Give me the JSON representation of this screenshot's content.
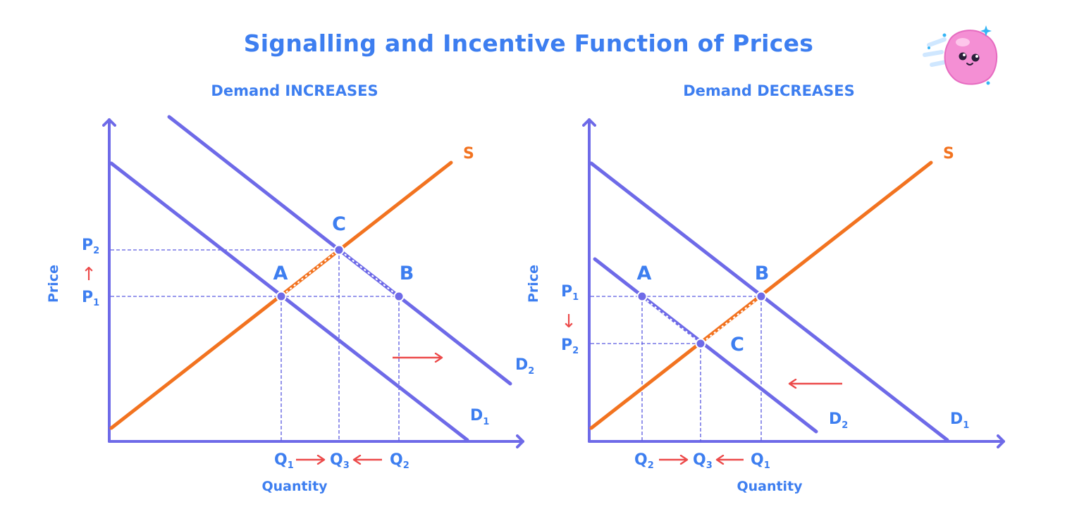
{
  "title": "Signalling and Incentive Function of Prices",
  "colors": {
    "demand": "#6e6ae8",
    "supply": "#f27320",
    "text": "#3d7ef0",
    "arrow": "#ec4a4a",
    "guide": "#5a5ae0"
  },
  "mascot_icon": "pink-blob-mascot-icon",
  "chart_data": [
    {
      "type": "diagram",
      "subtitle": "Demand INCREASES",
      "xlabel": "Quantity",
      "ylabel": "Price",
      "curves": {
        "supply": "S",
        "demand_1": "D",
        "demand_1_sub": "1",
        "demand_2": "D",
        "demand_2_sub": "2"
      },
      "points": {
        "a": "A",
        "b": "B",
        "c": "C"
      },
      "price_labels": [
        {
          "main": "P",
          "sub": "2"
        },
        {
          "main": "P",
          "sub": "1"
        }
      ],
      "price_change_arrow": "↑",
      "quantity_labels": [
        {
          "main": "Q",
          "sub": "1"
        },
        {
          "main": "Q",
          "sub": "3"
        },
        {
          "main": "Q",
          "sub": "2"
        }
      ],
      "shift_direction": "right"
    },
    {
      "type": "diagram",
      "subtitle": "Demand DECREASES",
      "xlabel": "Quantity",
      "ylabel": "Price",
      "curves": {
        "supply": "S",
        "demand_1": "D",
        "demand_1_sub": "1",
        "demand_2": "D",
        "demand_2_sub": "2"
      },
      "points": {
        "a": "A",
        "b": "B",
        "c": "C"
      },
      "price_labels": [
        {
          "main": "P",
          "sub": "1"
        },
        {
          "main": "P",
          "sub": "2"
        }
      ],
      "price_change_arrow": "↓",
      "quantity_labels": [
        {
          "main": "Q",
          "sub": "2"
        },
        {
          "main": "Q",
          "sub": "3"
        },
        {
          "main": "Q",
          "sub": "1"
        }
      ],
      "shift_direction": "left"
    }
  ]
}
